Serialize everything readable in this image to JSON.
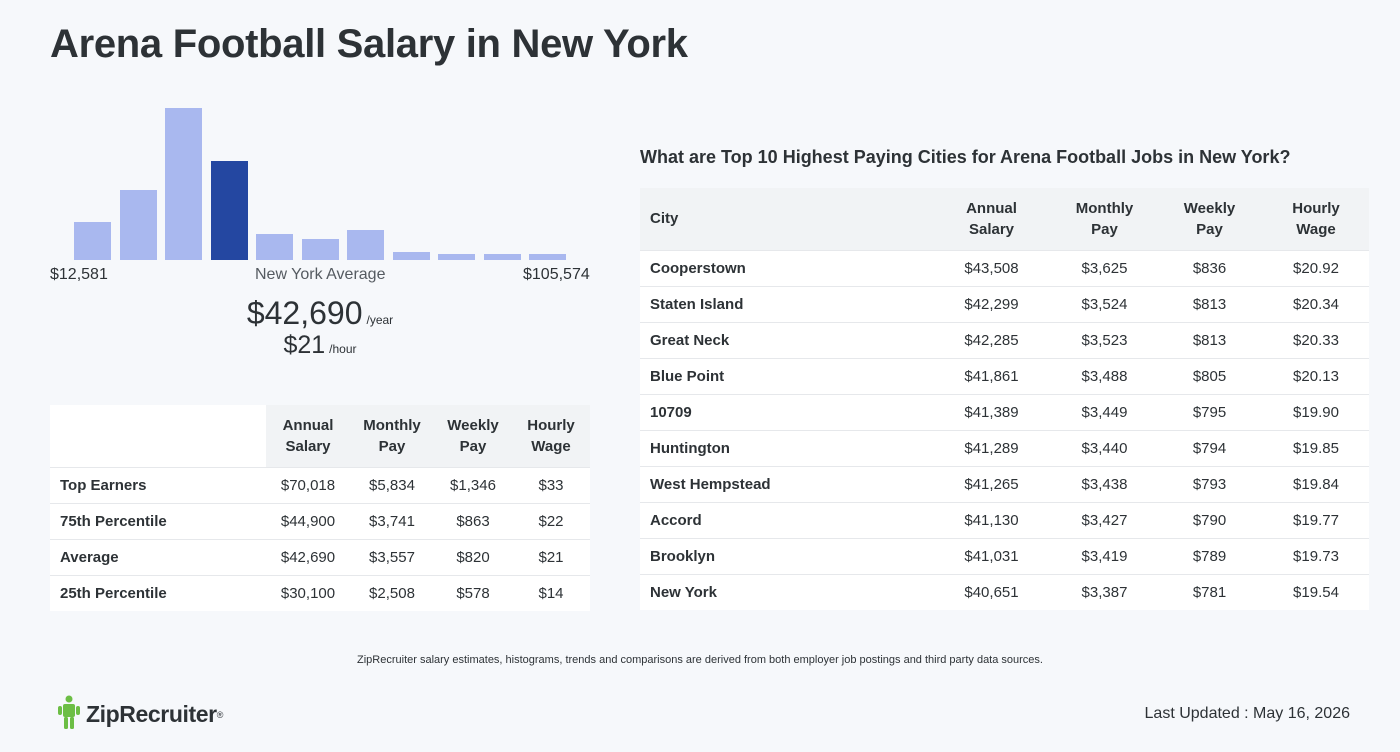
{
  "title": "Arena Football Salary in New York",
  "histogram": {
    "min_label": "$12,581",
    "max_label": "$105,574",
    "avg_label": "New York Average",
    "heights": [
      0.25,
      0.46,
      1.0,
      0.65,
      0.17,
      0.14,
      0.2,
      0.05,
      0.03,
      0.04,
      0.04
    ],
    "highlight_index": 3,
    "colors": {
      "bar": "#a9b8ef",
      "highlight": "#2447a1"
    }
  },
  "average": {
    "annual": "$42,690",
    "annual_unit": "/year",
    "hourly": "$21",
    "hourly_unit": "/hour"
  },
  "percentile_table": {
    "headers": [
      {
        "line1": "Annual",
        "line2": "Salary"
      },
      {
        "line1": "Monthly",
        "line2": "Pay"
      },
      {
        "line1": "Weekly",
        "line2": "Pay"
      },
      {
        "line1": "Hourly",
        "line2": "Wage"
      }
    ],
    "rows": [
      {
        "label": "Top Earners",
        "annual": "$70,018",
        "monthly": "$5,834",
        "weekly": "$1,346",
        "hourly": "$33"
      },
      {
        "label": "75th Percentile",
        "annual": "$44,900",
        "monthly": "$3,741",
        "weekly": "$863",
        "hourly": "$22"
      },
      {
        "label": "Average",
        "annual": "$42,690",
        "monthly": "$3,557",
        "weekly": "$820",
        "hourly": "$21"
      },
      {
        "label": "25th Percentile",
        "annual": "$30,100",
        "monthly": "$2,508",
        "weekly": "$578",
        "hourly": "$14"
      }
    ]
  },
  "cities": {
    "heading": "What are Top 10 Highest Paying Cities for Arena Football Jobs in New York?",
    "headers": {
      "city": "City",
      "annual": {
        "line1": "Annual",
        "line2": "Salary"
      },
      "monthly": {
        "line1": "Monthly",
        "line2": "Pay"
      },
      "weekly": {
        "line1": "Weekly",
        "line2": "Pay"
      },
      "hourly": {
        "line1": "Hourly",
        "line2": "Wage"
      }
    },
    "rows": [
      {
        "city": "Cooperstown",
        "annual": "$43,508",
        "monthly": "$3,625",
        "weekly": "$836",
        "hourly": "$20.92"
      },
      {
        "city": "Staten Island",
        "annual": "$42,299",
        "monthly": "$3,524",
        "weekly": "$813",
        "hourly": "$20.34"
      },
      {
        "city": "Great Neck",
        "annual": "$42,285",
        "monthly": "$3,523",
        "weekly": "$813",
        "hourly": "$20.33"
      },
      {
        "city": "Blue Point",
        "annual": "$41,861",
        "monthly": "$3,488",
        "weekly": "$805",
        "hourly": "$20.13"
      },
      {
        "city": "10709",
        "annual": "$41,389",
        "monthly": "$3,449",
        "weekly": "$795",
        "hourly": "$19.90"
      },
      {
        "city": "Huntington",
        "annual": "$41,289",
        "monthly": "$3,440",
        "weekly": "$794",
        "hourly": "$19.85"
      },
      {
        "city": "West Hempstead",
        "annual": "$41,265",
        "monthly": "$3,438",
        "weekly": "$793",
        "hourly": "$19.84"
      },
      {
        "city": "Accord",
        "annual": "$41,130",
        "monthly": "$3,427",
        "weekly": "$790",
        "hourly": "$19.77"
      },
      {
        "city": "Brooklyn",
        "annual": "$41,031",
        "monthly": "$3,419",
        "weekly": "$789",
        "hourly": "$19.73"
      },
      {
        "city": "New York",
        "annual": "$40,651",
        "monthly": "$3,387",
        "weekly": "$781",
        "hourly": "$19.54"
      }
    ]
  },
  "footer": {
    "disclaimer": "ZipRecruiter salary estimates, histograms, trends and comparisons are derived from both employer job postings and third party data sources.",
    "logo_text": "ZipRecruiter",
    "logo_icon": "ziprecruiter-logo-icon",
    "logo_color": "#6cbe45",
    "last_updated": "Last Updated : May 16, 2026"
  }
}
